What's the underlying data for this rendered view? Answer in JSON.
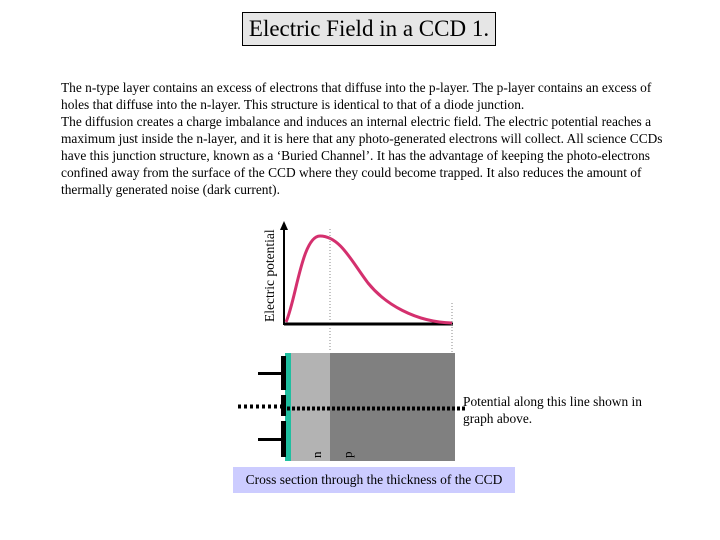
{
  "title": "Electric Field in a CCD 1.",
  "paragraphs": [
    "The n-type layer contains an excess of electrons that diffuse into the p-layer. The p-layer contains an excess of holes that diffuse into the n-layer. This structure is identical to that of a diode junction.",
    "The diffusion creates a charge imbalance and induces an internal electric field. The electric potential reaches a maximum just inside the n-layer, and it is here that any photo-generated electrons will collect. All science CCDs have this junction structure, known as a ‘Buried Channel’. It has the advantage of keeping the photo-electrons confined away from the surface of the CCD where they could become trapped. It also reduces the amount of thermally generated noise (dark current)."
  ],
  "graph": {
    "ylabel": "Electric potential"
  },
  "cross_section": {
    "n_label": "n",
    "p_label": "p",
    "annotation": "Potential along this line shown in graph above.",
    "caption": "Cross section through the thickness of the CCD"
  },
  "colors": {
    "title_bg": "#e6e6e6",
    "curve": "#d4306e",
    "n_layer": "#b3b3b3",
    "p_layer": "#808080",
    "oxide": "#1fbfa0",
    "caption_bg": "#ccccff"
  }
}
